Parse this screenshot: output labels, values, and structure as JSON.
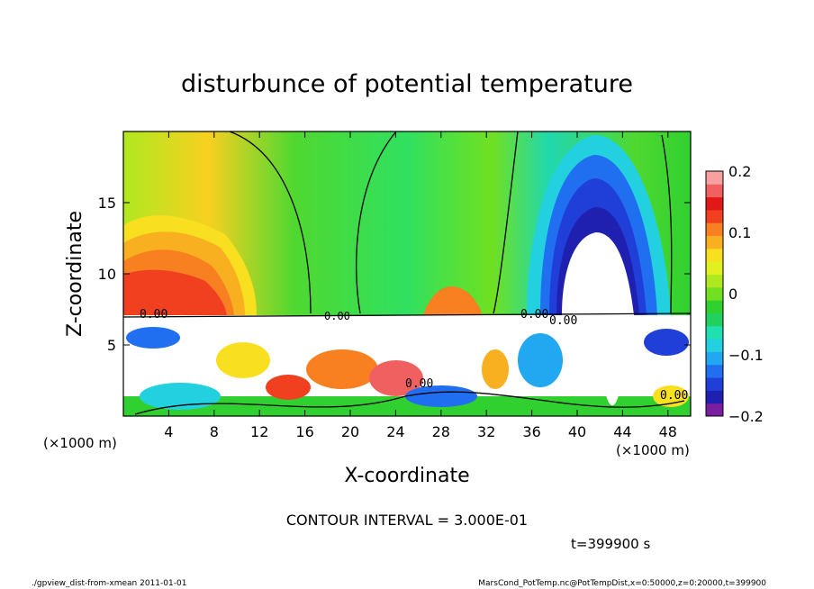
{
  "chart_data": {
    "type": "heatmap",
    "title": "disturbunce of potential temperature",
    "xlabel": "X-coordinate",
    "ylabel": "Z-coordinate",
    "x_unit_label": "(×1000 m)",
    "y_unit_label": "(×1000 m)",
    "xlim": [
      0,
      50
    ],
    "ylim": [
      0,
      20
    ],
    "x_ticks": [
      "4",
      "8",
      "12",
      "16",
      "20",
      "24",
      "28",
      "32",
      "36",
      "40",
      "44",
      "48"
    ],
    "y_ticks": [
      "5",
      "10",
      "15"
    ],
    "colorbar": {
      "range": [
        -0.2,
        0.2
      ],
      "tick_labels": [
        "0.2",
        "0.1",
        "0",
        "−0.1",
        "−0.2"
      ],
      "colors": [
        "#7b1fa2",
        "#2020b0",
        "#1f3fd8",
        "#1f6ff0",
        "#22a8f0",
        "#22d0e0",
        "#20e0b0",
        "#22d060",
        "#30d030",
        "#70e020",
        "#b0e820",
        "#e0f020",
        "#f8e020",
        "#f8b020",
        "#f88020",
        "#f04020",
        "#e01818",
        "#f06060",
        "#f8a0a0"
      ]
    },
    "contour_interval_text": "CONTOUR INTERVAL = 3.000E-01",
    "contour_labels": [
      "0.00",
      "0.00",
      "0.00",
      "0.00",
      "0.00",
      "0.00"
    ],
    "time_text": "t=399900 s"
  },
  "footer": {
    "left": "./gpview_dist-from-xmean  2011-01-01",
    "right": "MarsCond_PotTemp.nc@PotTempDist,x=0:50000,z=0:20000,t=399900"
  }
}
